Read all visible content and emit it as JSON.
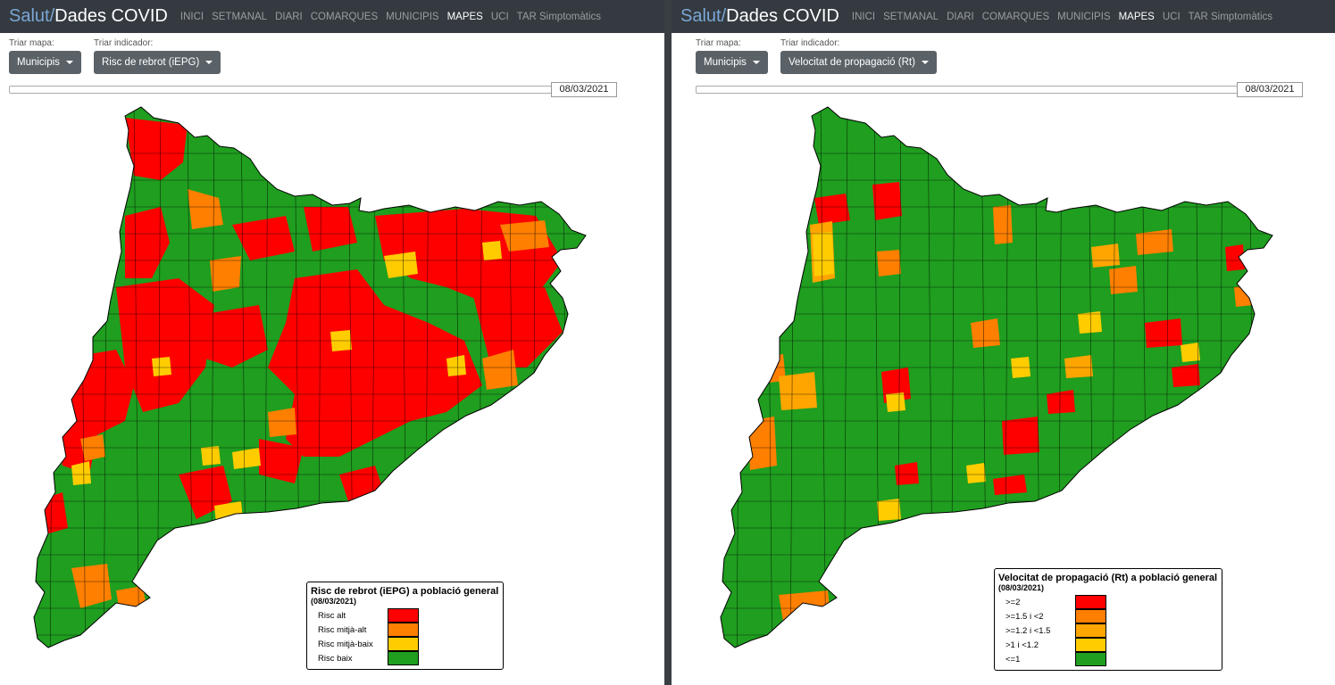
{
  "brand": {
    "part1": "Salut/",
    "part2": "Dades COVID"
  },
  "nav": [
    "INICI",
    "SETMANAL",
    "DIARI",
    "COMARQUES",
    "MUNICIPIS",
    "MAPES",
    "UCI",
    "TAR Simptomàtics"
  ],
  "nav_active": "MAPES",
  "colors": {
    "red": "#ff0000",
    "orange": "#ff7f00",
    "amber": "#ffa500",
    "yellow": "#ffcc00",
    "green": "#1f9e1f",
    "navbar": "#343a40"
  },
  "left": {
    "map_label": "Triar mapa:",
    "map_value": "Municipis",
    "indicator_label": "Triar indicador:",
    "indicator_value": "Risc de rebrot (iEPG)",
    "date": "08/03/2021",
    "legend": {
      "title": "Risc de rebrot (iEPG) a població general",
      "date": "(08/03/2021)",
      "items": [
        {
          "label": "Risc alt",
          "color": "#ff0000"
        },
        {
          "label": "Risc mitjà-alt",
          "color": "#ff7f00"
        },
        {
          "label": "Risc mitjà-baix",
          "color": "#ffcc00"
        },
        {
          "label": "Risc baix",
          "color": "#1f9e1f"
        }
      ]
    }
  },
  "right": {
    "map_label": "Triar mapa:",
    "map_value": "Municipis",
    "indicator_label": "Triar indicador:",
    "indicator_value": "Velocitat de propagació (Rt)",
    "date": "08/03/2021",
    "legend": {
      "title": "Velocitat de propagació (Rt) a població general",
      "date": "(08/03/2021)",
      "items": [
        {
          "label": ">=2",
          "color": "#ff0000"
        },
        {
          "label": ">=1.5 i <2",
          "color": "#ff7f00"
        },
        {
          "label": ">=1.2 i <1.5",
          "color": "#ffa500"
        },
        {
          "label": ">1 i <1.2",
          "color": "#ffcc00"
        },
        {
          "label": "<=1",
          "color": "#1f9e1f"
        }
      ]
    }
  }
}
